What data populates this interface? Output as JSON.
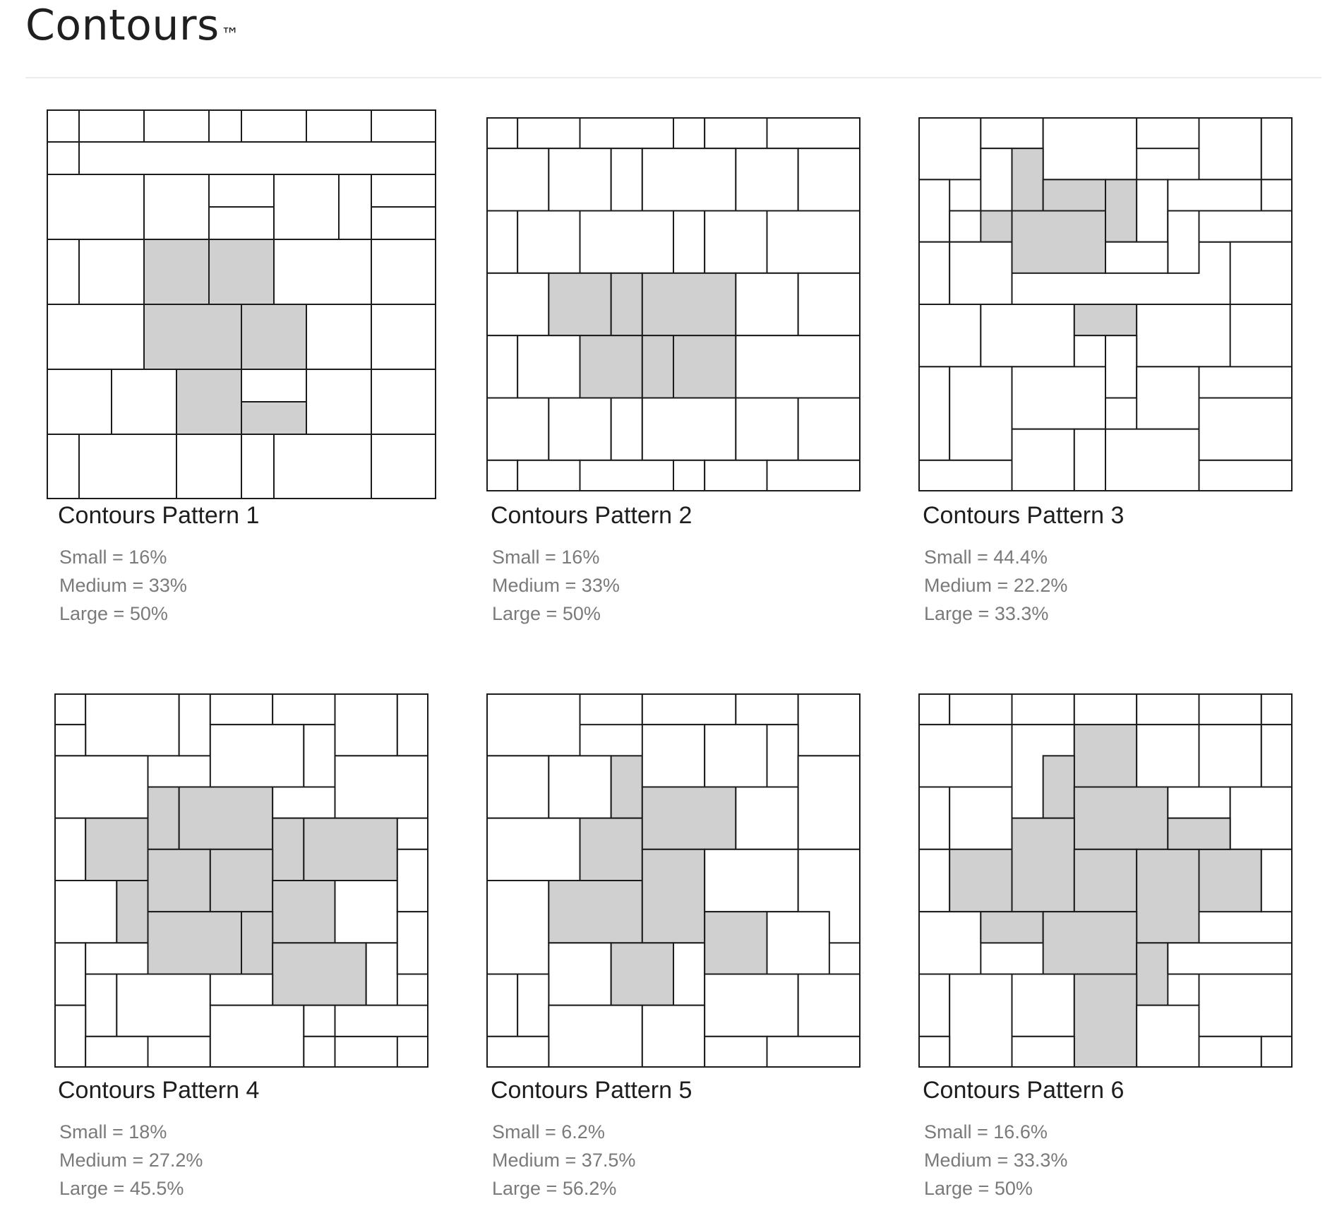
{
  "page": {
    "title": "Contours",
    "trademark": "™"
  },
  "colors": {
    "tile_fill": "#ffffff",
    "tile_highlight": "#d0d0d0",
    "tile_stroke": "#1c1c1c",
    "stats_text": "#7a7a7a",
    "divider": "#ececec"
  },
  "patterns": [
    {
      "title": "Contours Pattern 1",
      "stats": [
        {
          "label": "Small",
          "value": "16%",
          "text": "Small = 16%"
        },
        {
          "label": "Medium",
          "value": "33%",
          "text": "Medium = 33%"
        },
        {
          "label": "Large",
          "value": "50%",
          "text": "Large = 50%"
        }
      ]
    },
    {
      "title": "Contours Pattern 2",
      "stats": [
        {
          "label": "Small",
          "value": "16%",
          "text": "Small = 16%"
        },
        {
          "label": "Medium",
          "value": "33%",
          "text": "Medium = 33%"
        },
        {
          "label": "Large",
          "value": "50%",
          "text": "Large = 50%"
        }
      ]
    },
    {
      "title": "Contours Pattern 3",
      "stats": [
        {
          "label": "Small",
          "value": "44.4%",
          "text": "Small = 44.4%"
        },
        {
          "label": "Medium",
          "value": "22.2%",
          "text": "Medium = 22.2%"
        },
        {
          "label": "Large",
          "value": "33.3%",
          "text": "Large = 33.3%"
        }
      ]
    },
    {
      "title": "Contours Pattern 4",
      "stats": [
        {
          "label": "Small",
          "value": "18%",
          "text": "Small = 18%"
        },
        {
          "label": "Medium",
          "value": "27.2%",
          "text": "Medium = 27.2%"
        },
        {
          "label": "Large",
          "value": "45.5%",
          "text": "Large = 45.5%"
        }
      ]
    },
    {
      "title": "Contours Pattern 5",
      "stats": [
        {
          "label": "Small",
          "value": "6.2%",
          "text": "Small = 6.2%"
        },
        {
          "label": "Medium",
          "value": "37.5%",
          "text": "Medium = 37.5%"
        },
        {
          "label": "Large",
          "value": "56.2%",
          "text": "Large = 56.2%"
        }
      ]
    },
    {
      "title": "Contours Pattern 6",
      "stats": [
        {
          "label": "Small",
          "value": "16.6%",
          "text": "Small = 16.6%"
        },
        {
          "label": "Medium",
          "value": "33.3%",
          "text": "Medium = 33.3%"
        },
        {
          "label": "Large",
          "value": "50%",
          "text": "Large = 50%"
        }
      ]
    }
  ]
}
